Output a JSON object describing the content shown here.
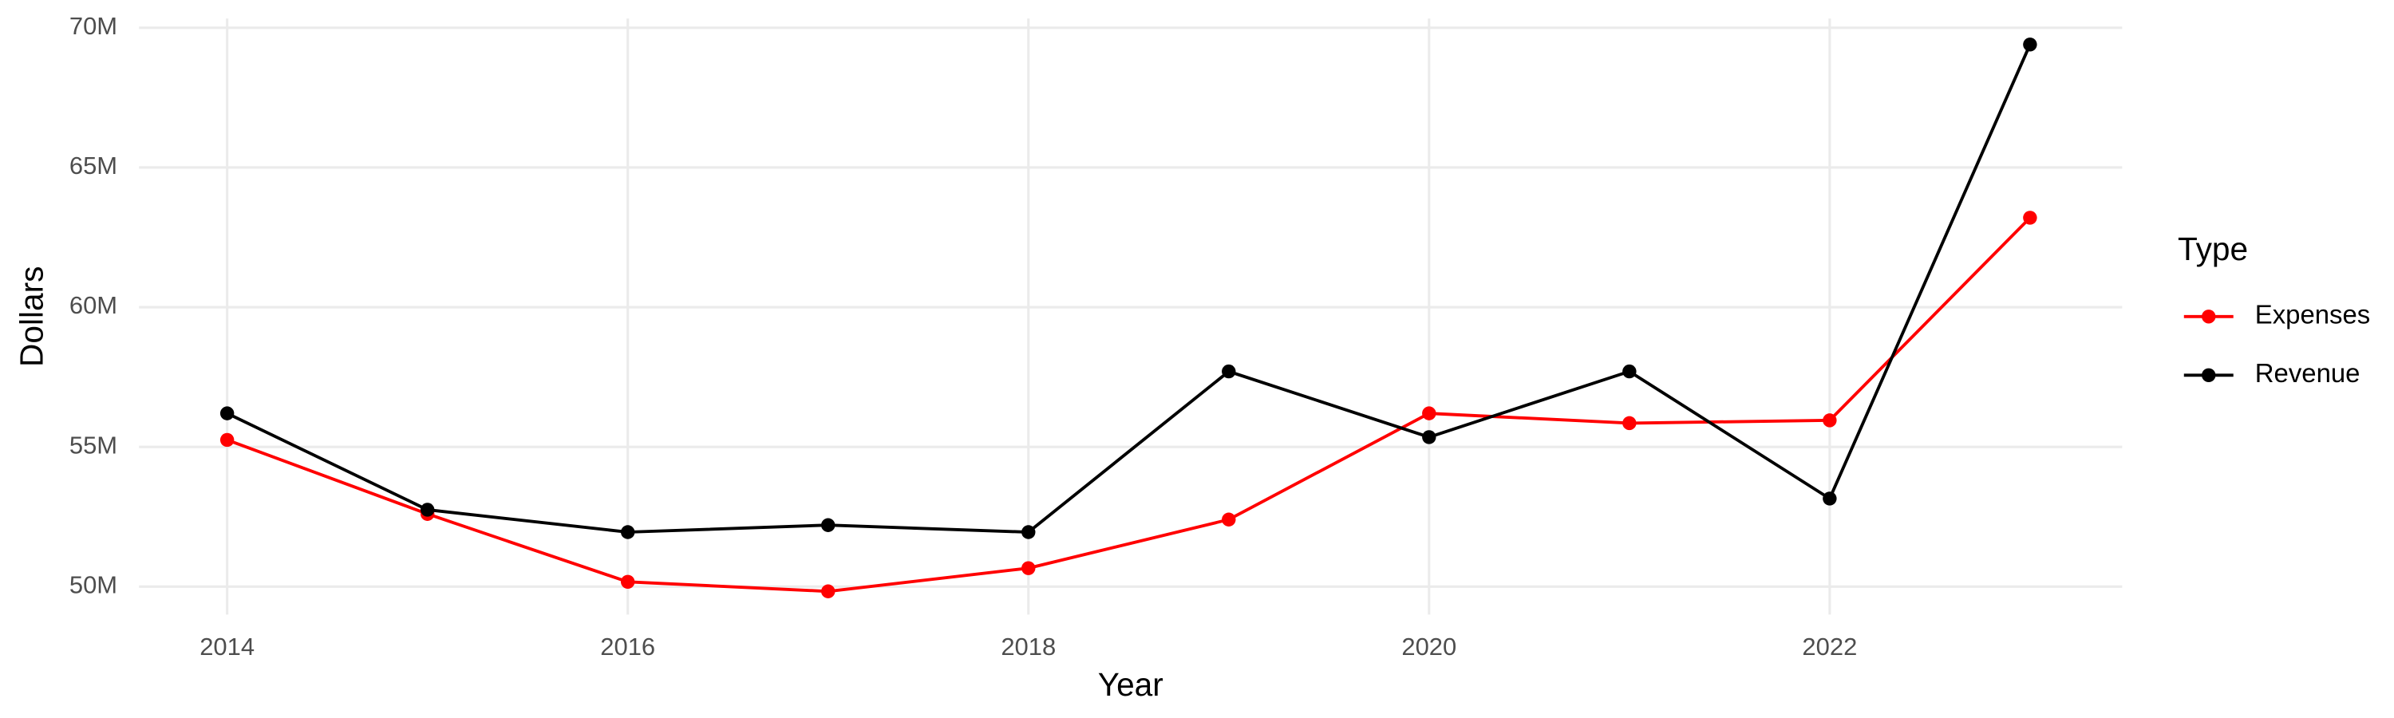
{
  "chart_data": {
    "type": "line",
    "x_label": "Year",
    "y_label": "Dollars",
    "x": [
      2014,
      2015,
      2016,
      2017,
      2018,
      2019,
      2020,
      2021,
      2022,
      2023
    ],
    "series": [
      {
        "name": "Expenses",
        "color": "#ff0000",
        "values": [
          55250000,
          52600000,
          50170000,
          49830000,
          50660000,
          52400000,
          56200000,
          55850000,
          55950000,
          63200000
        ]
      },
      {
        "name": "Revenue",
        "color": "#000000",
        "values": [
          56200000,
          52750000,
          51950000,
          52200000,
          51950000,
          57700000,
          55350000,
          57700000,
          53150000,
          69400000
        ]
      }
    ],
    "xlim": [
      2013.56,
      2023.46
    ],
    "ylim": [
      49000000,
      70330000
    ],
    "xticks": [
      2014,
      2016,
      2018,
      2020,
      2022
    ],
    "yticks": [
      {
        "value": 50000000,
        "label": "50M"
      },
      {
        "value": 55000000,
        "label": "55M"
      },
      {
        "value": 60000000,
        "label": "60M"
      },
      {
        "value": 65000000,
        "label": "65M"
      },
      {
        "value": 70000000,
        "label": "70M"
      }
    ],
    "grid": true,
    "legend_title": "Type",
    "legend_position": "right"
  }
}
